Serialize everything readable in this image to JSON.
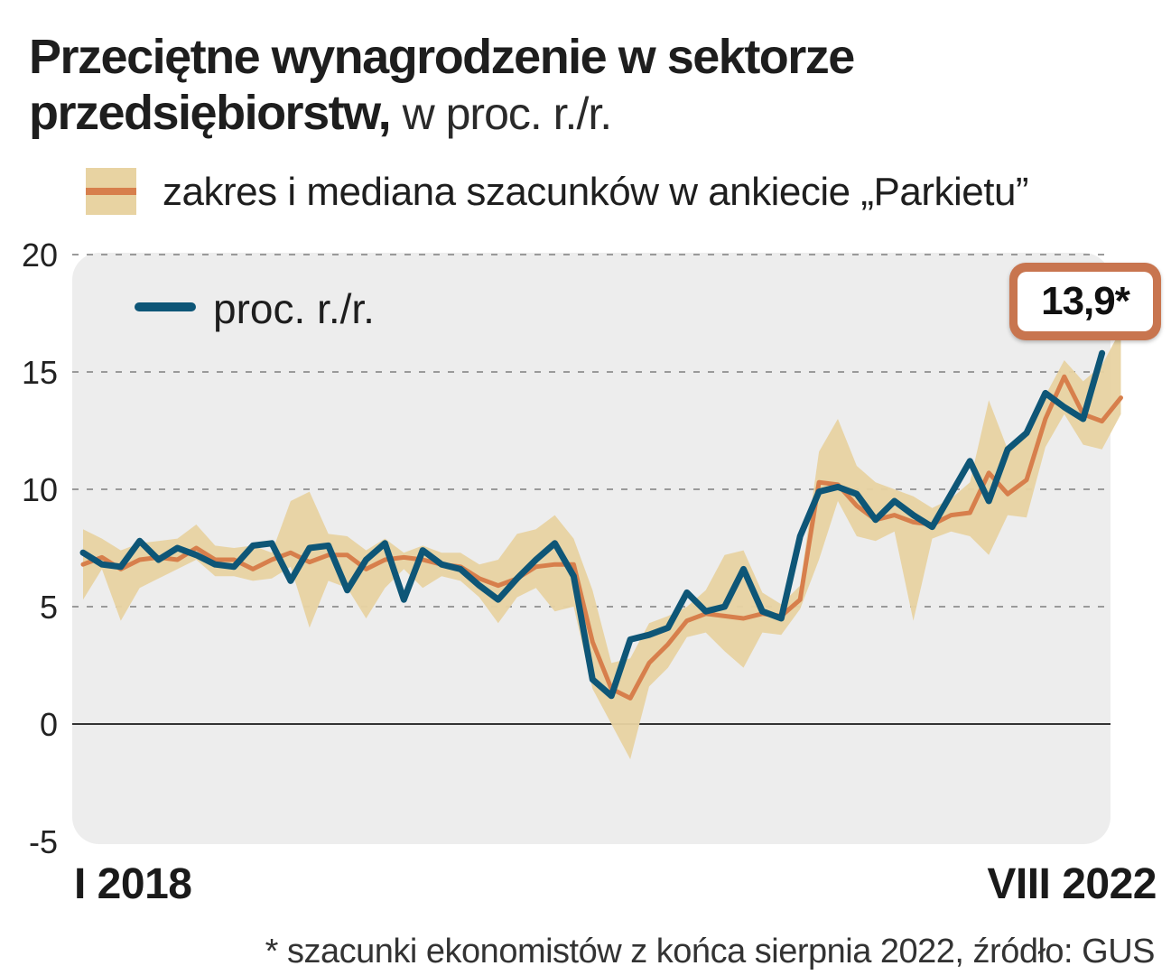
{
  "title": {
    "bold": "Przeciętne wynagrodzenie w sektorze przedsiębiorstw,",
    "regular": "w proc. r./r."
  },
  "legend": {
    "band_label": "zakres i mediana szacunków w ankiecie „Parkietu”",
    "line_label": "proc. r./r."
  },
  "callout": "13,9*",
  "footnote": "* szacunki ekonomistów z końca sierpnia 2022, źródło: GUS",
  "x_start_label": "I 2018",
  "x_end_label": "VIII 2022",
  "colors": {
    "actual_line": "#0e5677",
    "median_line": "#d77f4c",
    "range_band": "#e8d3a2",
    "plot_bg": "#ededed",
    "callout_border": "#c8754f"
  },
  "chart_data": {
    "type": "line",
    "x_label_first": "I 2018",
    "x_label_last": "VIII 2022",
    "ylim": [
      -5,
      20
    ],
    "yticks": [
      20,
      15,
      10,
      5,
      0,
      -5
    ],
    "grid": "dashed horizontal",
    "series": [
      {
        "name": "proc. r./r.",
        "values": [
          7.3,
          6.8,
          6.7,
          7.8,
          7.0,
          7.5,
          7.2,
          6.8,
          6.7,
          7.6,
          7.7,
          6.1,
          7.5,
          7.6,
          5.7,
          7.0,
          7.7,
          5.3,
          7.4,
          6.8,
          6.6,
          5.9,
          5.3,
          6.2,
          7.0,
          7.7,
          6.3,
          1.9,
          1.2,
          3.6,
          3.8,
          4.1,
          5.6,
          4.8,
          5.0,
          6.6,
          4.8,
          4.5,
          8.0,
          9.9,
          10.1,
          9.8,
          8.7,
          9.5,
          8.9,
          8.4,
          9.8,
          11.2,
          9.5,
          11.7,
          12.4,
          14.1,
          13.5,
          13.0,
          15.8
        ]
      },
      {
        "name": "zakres i mediana szacunków w ankiecie „Parkietu”",
        "median": [
          6.8,
          7.1,
          6.6,
          7.0,
          7.1,
          7.0,
          7.5,
          7.0,
          7.0,
          6.6,
          7.0,
          7.3,
          6.9,
          7.2,
          7.2,
          6.6,
          7.0,
          7.1,
          7.0,
          6.8,
          6.7,
          6.2,
          5.9,
          6.2,
          6.7,
          6.8,
          6.8,
          3.5,
          1.5,
          1.1,
          2.6,
          3.4,
          4.4,
          4.7,
          4.6,
          4.5,
          4.7,
          4.6,
          5.3,
          10.3,
          10.2,
          9.3,
          8.7,
          8.9,
          8.6,
          8.5,
          8.9,
          9.0,
          10.7,
          9.8,
          10.4,
          13.0,
          14.8,
          13.2,
          12.9,
          13.9
        ],
        "low": [
          5.3,
          6.6,
          4.4,
          5.8,
          6.2,
          6.6,
          7.0,
          6.3,
          6.3,
          6.1,
          6.2,
          6.7,
          4.1,
          6.1,
          5.8,
          4.5,
          5.8,
          6.6,
          5.8,
          6.3,
          6.1,
          5.4,
          4.3,
          5.4,
          5.8,
          4.8,
          5.0,
          1.5,
          0.0,
          -1.5,
          1.6,
          2.4,
          3.7,
          3.9,
          3.1,
          2.4,
          3.9,
          3.8,
          4.9,
          7.0,
          9.5,
          8.0,
          7.8,
          8.2,
          4.4,
          7.9,
          8.2,
          8.0,
          7.2,
          8.9,
          8.8,
          11.8,
          13.2,
          11.9,
          11.7,
          13.2
        ],
        "high": [
          8.3,
          7.9,
          7.4,
          7.7,
          7.8,
          7.9,
          8.5,
          7.6,
          7.5,
          7.6,
          7.3,
          9.5,
          9.9,
          8.1,
          8.0,
          7.4,
          7.9,
          7.3,
          7.6,
          7.3,
          7.3,
          6.8,
          7.0,
          8.1,
          8.3,
          8.9,
          7.9,
          5.7,
          2.6,
          2.8,
          4.3,
          4.6,
          5.0,
          5.7,
          7.2,
          7.4,
          5.6,
          5.1,
          5.9,
          11.6,
          13.0,
          11.0,
          10.3,
          10.0,
          9.7,
          9.2,
          9.6,
          10.3,
          13.8,
          11.7,
          12.3,
          14.0,
          15.5,
          14.6,
          15.3,
          16.8
        ]
      }
    ],
    "annotation": "13,9*"
  }
}
